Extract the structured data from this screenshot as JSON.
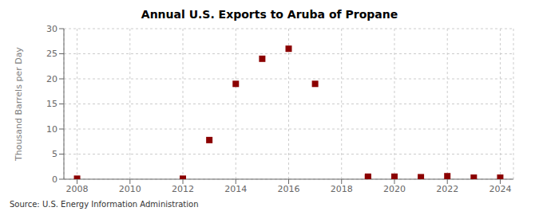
{
  "chart_data": {
    "type": "scatter",
    "title": "Annual U.S. Exports to Aruba of Propane",
    "ylabel": "Thousand Barrels per Day",
    "source": "Source: U.S. Energy Information Administration",
    "x": [
      2008,
      2012,
      2013,
      2014,
      2015,
      2016,
      2017,
      2019,
      2019,
      2020,
      2021,
      2022,
      2023,
      2024
    ],
    "values": [
      0.1,
      0.1,
      7.8,
      19.0,
      24.0,
      26.0,
      19.0,
      0.3,
      0.5,
      0.5,
      0.4,
      0.6,
      0.3,
      0.3
    ],
    "color": "#8b0000",
    "marker": "square",
    "xlim": [
      2007.5,
      2024.5
    ],
    "ylim": [
      0,
      30
    ],
    "xticks": [
      2008,
      2010,
      2012,
      2014,
      2016,
      2018,
      2020,
      2022,
      2024
    ],
    "yticks": [
      0,
      5,
      10,
      15,
      20,
      25,
      30
    ],
    "grid": true
  }
}
